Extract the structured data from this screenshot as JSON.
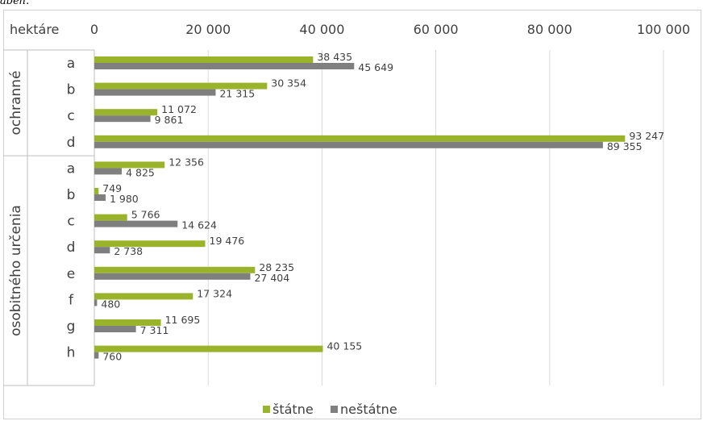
{
  "page": {
    "top_fragment": "abeh."
  },
  "chart_data": {
    "type": "bar",
    "orientation": "horizontal",
    "unit_label": "hektáre",
    "xlim": [
      0,
      100000
    ],
    "x_ticks": [
      0,
      20000,
      40000,
      60000,
      80000,
      100000
    ],
    "x_tick_labels": [
      "0",
      "20 000",
      "40 000",
      "60 000",
      "80 000",
      "100 000"
    ],
    "grid": true,
    "legend_position": "bottom",
    "colors": {
      "statne": "#99b42b",
      "nestatne": "#7f7f7f"
    },
    "groups": [
      {
        "name": "ochranné",
        "categories": [
          "a",
          "b",
          "c",
          "d"
        ],
        "series": [
          {
            "name": "štátne",
            "values": [
              38435,
              30354,
              11072,
              93247
            ],
            "labels": [
              "38 435",
              "30 354",
              "11 072",
              "93 247"
            ]
          },
          {
            "name": "neštátne",
            "values": [
              45649,
              21315,
              9861,
              89355
            ],
            "labels": [
              "45 649",
              "21 315",
              "9 861",
              "89 355"
            ]
          }
        ]
      },
      {
        "name": "osobitného určenia",
        "categories": [
          "a",
          "b",
          "c",
          "d",
          "e",
          "f",
          "g",
          "h"
        ],
        "series": [
          {
            "name": "štátne",
            "values": [
              12356,
              749,
              5766,
              19476,
              28235,
              17324,
              11695,
              40155
            ],
            "labels": [
              "12 356",
              "749",
              "5 766",
              "19 476",
              "28 235",
              "17 324",
              "11 695",
              "40 155"
            ]
          },
          {
            "name": "neštátne",
            "values": [
              4825,
              1980,
              14624,
              2738,
              27404,
              480,
              7311,
              760
            ],
            "labels": [
              "4 825",
              "1 980",
              "14 624",
              "2 738",
              "27 404",
              "480",
              "7 311",
              "760"
            ]
          }
        ]
      }
    ],
    "legend": [
      "štátne",
      "neštátne"
    ]
  }
}
